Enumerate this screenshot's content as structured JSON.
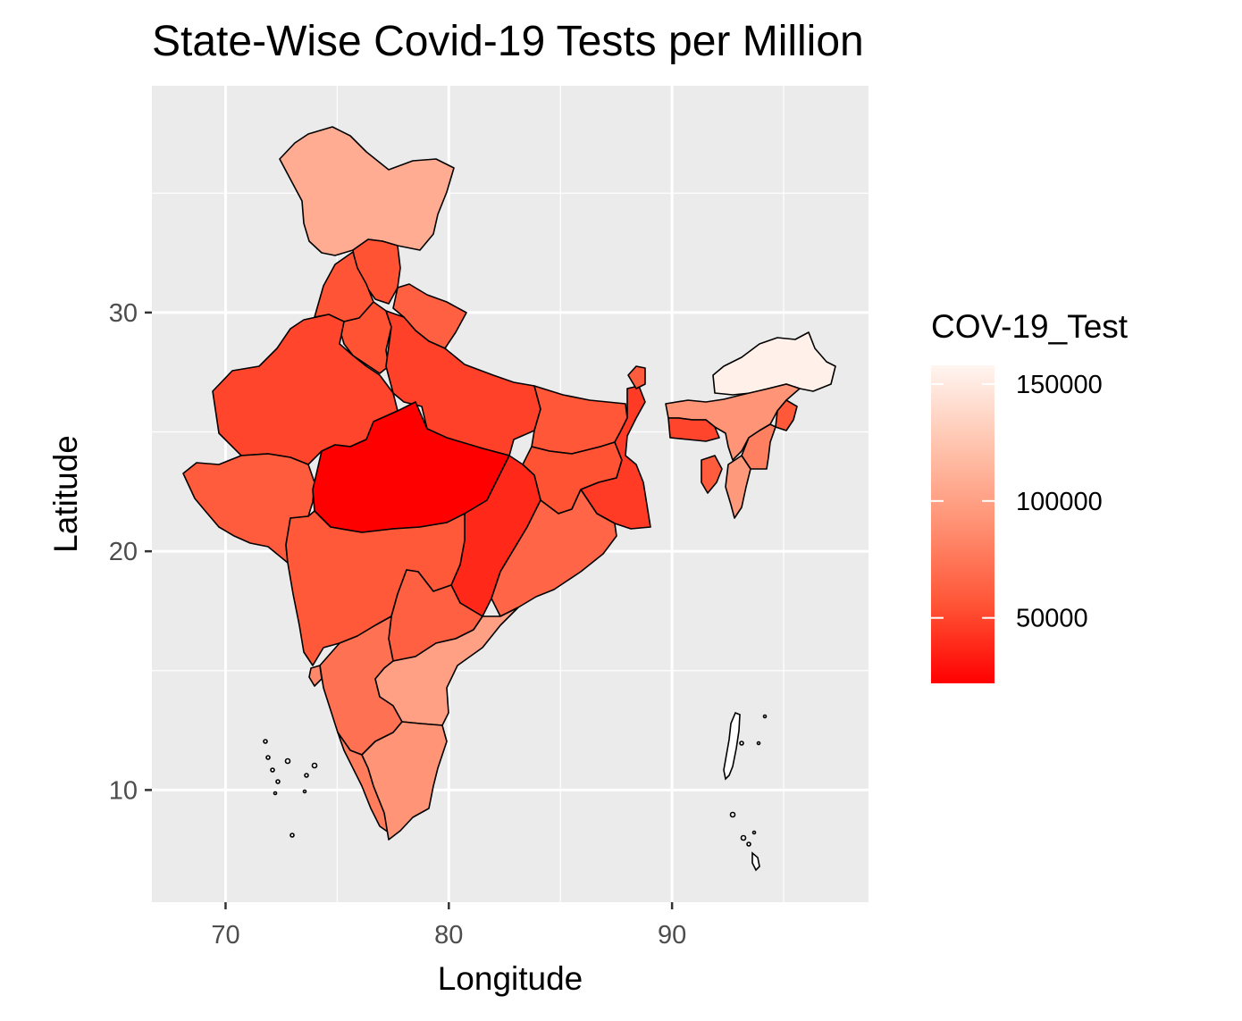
{
  "title": "State-Wise Covid-19 Tests per Million",
  "colors": {
    "panel_bg": "#ebebeb",
    "grid": "#ffffff",
    "low": "#ff0000",
    "high": "#fff5f0",
    "border": "#000000"
  },
  "chart_data": {
    "type": "choropleth",
    "title": "State-Wise Covid-19 Tests per Million",
    "xlabel": "Longitude",
    "ylabel": "Latitude",
    "xlim": [
      66.7,
      98.8
    ],
    "ylim": [
      5.3,
      39.5
    ],
    "x_ticks": [
      70,
      80,
      90
    ],
    "y_ticks": [
      10,
      20,
      30
    ],
    "grid": true,
    "legend": {
      "title": "COV-19_Test",
      "position": "right",
      "range": [
        22000,
        158000
      ],
      "breaks": [
        150000,
        100000,
        50000
      ],
      "break_labels": [
        "150000",
        "100000",
        "50000"
      ]
    },
    "regions": [
      {
        "name": "Jammu & Kashmir",
        "value": 108000
      },
      {
        "name": "Himachal Pradesh",
        "value": 55000
      },
      {
        "name": "Punjab",
        "value": 56000
      },
      {
        "name": "Uttarakhand",
        "value": 62000
      },
      {
        "name": "Haryana",
        "value": 55000
      },
      {
        "name": "Rajasthan",
        "value": 50000
      },
      {
        "name": "Uttar Pradesh",
        "value": 48000
      },
      {
        "name": "Bihar",
        "value": 57000
      },
      {
        "name": "Gujarat",
        "value": 60000
      },
      {
        "name": "Madhya Pradesh",
        "value": 22000
      },
      {
        "name": "Jharkhand",
        "value": 55000
      },
      {
        "name": "West Bengal",
        "value": 45000
      },
      {
        "name": "Chhattisgarh",
        "value": 38000
      },
      {
        "name": "Odisha",
        "value": 65000
      },
      {
        "name": "Maharashtra",
        "value": 58000
      },
      {
        "name": "Telangana",
        "value": 62000
      },
      {
        "name": "Karnataka",
        "value": 72000
      },
      {
        "name": "Andhra Pradesh",
        "value": 100000
      },
      {
        "name": "Goa",
        "value": 85000
      },
      {
        "name": "Kerala",
        "value": 78000
      },
      {
        "name": "Tamil Nadu",
        "value": 92000
      },
      {
        "name": "Sikkim",
        "value": 60000
      },
      {
        "name": "Arunachal Pradesh",
        "value": 155000
      },
      {
        "name": "Assam",
        "value": 92000
      },
      {
        "name": "Meghalaya",
        "value": 50000
      },
      {
        "name": "Nagaland",
        "value": 58000
      },
      {
        "name": "Manipur",
        "value": 80000
      },
      {
        "name": "Mizoram",
        "value": 95000
      },
      {
        "name": "Tripura",
        "value": 60000
      }
    ]
  }
}
